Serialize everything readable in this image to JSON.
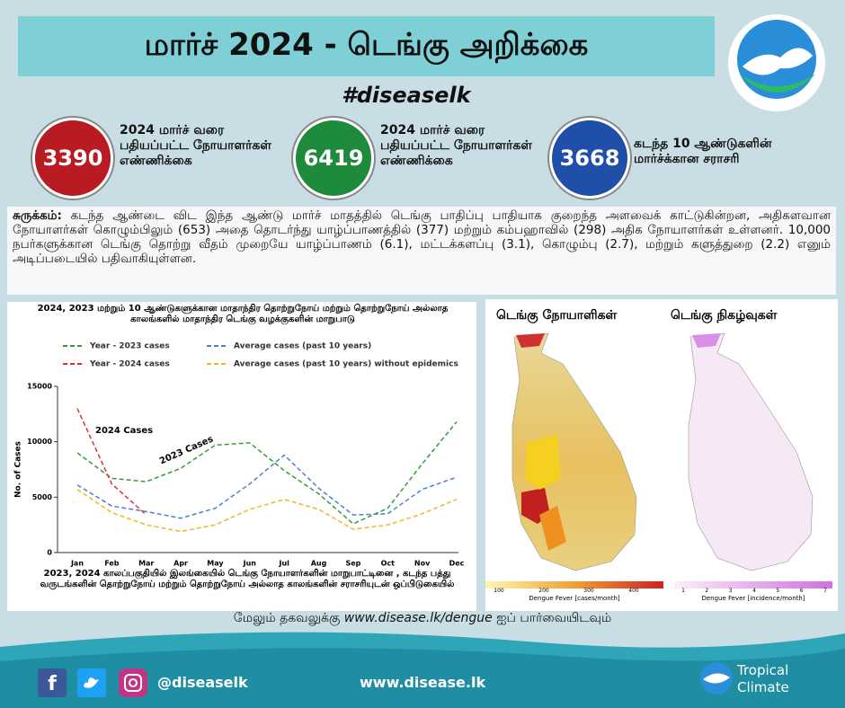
{
  "header": {
    "title": "மார்ச் 2024 -  டெங்கு அறிக்கை",
    "hashtag": "#diseaselk"
  },
  "stats": [
    {
      "value": 3390,
      "label": "2024 மார்ச் வரை பதியப்பட்ட நோயாளர்கள் எண்ணிக்கை",
      "color": "#b81c22"
    },
    {
      "value": 6419,
      "label": "2024 மார்ச் வரை பதியப்பட்ட நோயாளர்கள் எண்ணிக்கை",
      "color": "#1e8a3c"
    },
    {
      "value": 3668,
      "label": "கடந்த 10 ஆண்டுகளின் மார்ச்க்கான சராசரி",
      "color": "#1f4fa8"
    }
  ],
  "summary": {
    "label": "சுருக்கம்:",
    "text": "கடந்த ஆண்டை விட இந்த ஆண்டு மார்ச் மாதத்தில் டெங்கு பாதிப்பு பாதியாக குறைந்த அளவைக் காட்டுகின்றன, அதிகளவான நோயாளர்கள் கொழும்பிலும் (653) அதை தொடர்ந்து யாழ்ப்பாணத்தில் (377) மற்றும் கம்பஹாவில் (298) அதிக நோயாளர்கள் உள்ளனர். 10,000 நபர்களுக்கான டெங்கு தொற்று வீதம் முறையே யாழ்ப்பாணம் (6.1), மட்டக்களப்பு (3.1), கொழும்பு (2.7), மற்றும் களுத்துறை (2.2) எனும் அடிப்படையில் பதிவாகியுள்ளன."
  },
  "chart_data": {
    "type": "line",
    "title": "2024, 2023 மற்றும் 10 ஆண்டுகளுக்கான மாதாந்திர தொற்றுநோய் மற்றும் தொற்றுநோய் அல்லாத காலங்களில் மாதாந்திர டெங்கு வழக்குகளின் மாறுபாடு",
    "caption": "2023, 2024 காலப்பகுதியில் இலங்கையில் டெங்கு நோயாளர்களின் மாறுபாட்டினை , கடந்த பத்து வருடங்களின் தொற்றுநோய் மற்றும் தொற்றுநோய் அல்லாத காலங்களின் சராசரியுடன் ஒப்பிடுகையில்",
    "ylabel": "No. of Cases",
    "categories": [
      "Jan",
      "Feb",
      "Mar",
      "Apr",
      "May",
      "Jun",
      "Jul",
      "Aug",
      "Sep",
      "Oct",
      "Nov",
      "Dec"
    ],
    "ylim": [
      0,
      15000
    ],
    "yticks": [
      0,
      5000,
      10000,
      15000
    ],
    "annotations": [
      "2024 Cases",
      "2023 Cases"
    ],
    "series": [
      {
        "name": "Year - 2023 cases",
        "color": "#3a9a3a",
        "values": [
          9000,
          6700,
          6400,
          7600,
          9700,
          9900,
          7400,
          5300,
          2600,
          4000,
          8000,
          11800
        ]
      },
      {
        "name": "Year - 2024 cases",
        "color": "#e03030",
        "values": [
          13000,
          6200,
          3400,
          null,
          null,
          null,
          null,
          null,
          null,
          null,
          null,
          null
        ]
      },
      {
        "name": "Average cases (past 10 years)",
        "color": "#4a80d0",
        "values": [
          6100,
          4200,
          3700,
          3100,
          4000,
          6200,
          8800,
          5800,
          3400,
          3500,
          5700,
          6800
        ]
      },
      {
        "name": "Average cases (past 10 years) without epidemics",
        "color": "#f0b820",
        "values": [
          5700,
          3600,
          2500,
          1900,
          2500,
          3900,
          4800,
          3900,
          2100,
          2500,
          3500,
          4800
        ]
      }
    ]
  },
  "maps": [
    {
      "title": "டெங்கு நோயாளிகள்",
      "legend": "Dengue Fever [cases/month]",
      "ticks": [
        100,
        200,
        300,
        400
      ]
    },
    {
      "title": "டெங்கு நிகழ்வுகள்",
      "legend": "Dengue Fever [incidence/month]",
      "ticks": [
        1,
        2,
        3,
        4,
        5,
        6,
        7
      ]
    }
  ],
  "footer": {
    "note_before": "மேலும் தகவலுக்கு",
    "note_url": "www.disease.lk/dengue",
    "note_after": "ஐப் பார்வையிடவும்",
    "handle": "@diseaselk",
    "website": "www.disease.lk",
    "brand": [
      "Tropical",
      "Climate"
    ]
  }
}
